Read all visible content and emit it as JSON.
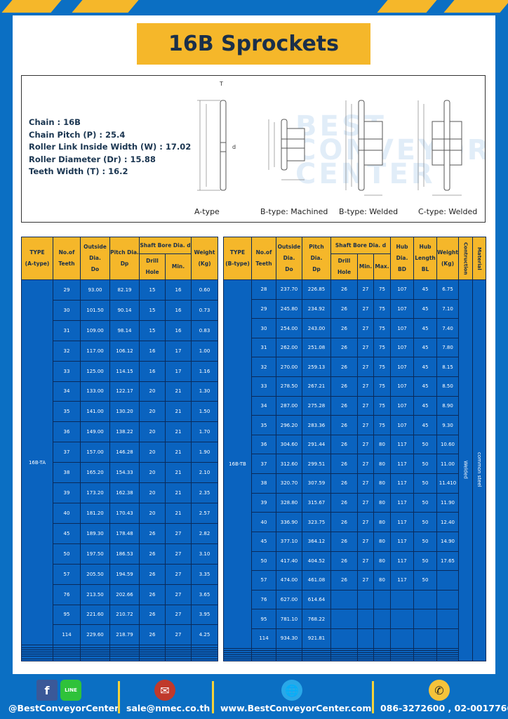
{
  "title": "16B Sprockets",
  "specs": [
    "Chain  :  16B",
    "Chain Pitch (P)  :  25.4",
    "Roller Link Inside Width (W)  :  17.02",
    "Roller Diameter (Dr)  : 15.88",
    "Teeth Width (T)  :  16.2"
  ],
  "watermark": [
    "BEST",
    "CONVEYOR",
    "CENTER"
  ],
  "diagram_labels": [
    "A-type",
    "B-type: Machined",
    "B-type: Welded",
    "C-type: Welded"
  ],
  "dim_labels": {
    "t": "T",
    "do": "Do",
    "dp": "Dp",
    "d": "d",
    "bd": "BD",
    "bl": "BL"
  },
  "colors": {
    "page_blue": "#0b6fc3",
    "header_yellow": "#f5b72a",
    "cell_blue": "#0a63bf"
  },
  "table_a": {
    "headers": {
      "type": "TYPE",
      "type_sub": "(A-type)",
      "teeth": "No.of",
      "teeth_sub": "Teeth",
      "do": "Outside",
      "do_sub": "Dia.",
      "do_sub2": "Do",
      "dp": "Pitch Dia.",
      "dp_sub": "Dp",
      "bore": "Shaft Bore Dia. d",
      "drill": "Drill Hole",
      "min": "Min.",
      "weight": "Weight",
      "weight_sub": "(Kg)"
    },
    "type_value": "16B-TA",
    "empty_rows": 7,
    "rows": [
      [
        "29",
        "93.00",
        "82.19",
        "15",
        "16",
        "0.60"
      ],
      [
        "30",
        "101.50",
        "90.14",
        "15",
        "16",
        "0.73"
      ],
      [
        "31",
        "109.00",
        "98.14",
        "15",
        "16",
        "0.83"
      ],
      [
        "32",
        "117.00",
        "106.12",
        "16",
        "17",
        "1.00"
      ],
      [
        "33",
        "125.00",
        "114.15",
        "16",
        "17",
        "1.16"
      ],
      [
        "34",
        "133.00",
        "122.17",
        "20",
        "21",
        "1.30"
      ],
      [
        "35",
        "141.00",
        "130.20",
        "20",
        "21",
        "1.50"
      ],
      [
        "36",
        "149.00",
        "138.22",
        "20",
        "21",
        "1.70"
      ],
      [
        "37",
        "157.00",
        "146.28",
        "20",
        "21",
        "1.90"
      ],
      [
        "38",
        "165.20",
        "154.33",
        "20",
        "21",
        "2.10"
      ],
      [
        "39",
        "173.20",
        "162.38",
        "20",
        "21",
        "2.35"
      ],
      [
        "40",
        "181.20",
        "170.43",
        "20",
        "21",
        "2.57"
      ],
      [
        "45",
        "189.30",
        "178.48",
        "26",
        "27",
        "2.82"
      ],
      [
        "50",
        "197.50",
        "186.53",
        "26",
        "27",
        "3.10"
      ],
      [
        "57",
        "205.50",
        "194.59",
        "26",
        "27",
        "3.35"
      ],
      [
        "76",
        "213.50",
        "202.66",
        "26",
        "27",
        "3.65"
      ],
      [
        "95",
        "221.60",
        "210.72",
        "26",
        "27",
        "3.95"
      ],
      [
        "114",
        "229.60",
        "218.79",
        "26",
        "27",
        "4.25"
      ]
    ]
  },
  "table_b": {
    "headers": {
      "type": "TYPE",
      "type_sub": "(B-type)",
      "teeth": "No.of",
      "teeth_sub": "Teeth",
      "do": "Outside",
      "do_sub": "Dia.",
      "do_sub2": "Do",
      "dp": "Pitch Dia.",
      "dp_sub": "Dp",
      "bore": "Shaft Bore Dia. d",
      "drill": "Drill Hole",
      "min": "Min.",
      "max": "Max.",
      "bd": "Hub Dia.",
      "bd_sub": "BD",
      "bl": "Hub",
      "bl_sub": "Length",
      "bl_sub2": "BL",
      "weight": "Weight",
      "weight_sub": "(Kg)",
      "construction": "Contruction",
      "material": "Material"
    },
    "type_value": "16B-TB",
    "construction_value": "Welded",
    "material_value": "common steel",
    "empty_rows": 6,
    "rows": [
      [
        "28",
        "237.70",
        "226.85",
        "26",
        "27",
        "75",
        "107",
        "45",
        "6.75"
      ],
      [
        "29",
        "245.80",
        "234.92",
        "26",
        "27",
        "75",
        "107",
        "45",
        "7.10"
      ],
      [
        "30",
        "254.00",
        "243.00",
        "26",
        "27",
        "75",
        "107",
        "45",
        "7.40"
      ],
      [
        "31",
        "262.00",
        "251.08",
        "26",
        "27",
        "75",
        "107",
        "45",
        "7.80"
      ],
      [
        "32",
        "270.00",
        "259.13",
        "26",
        "27",
        "75",
        "107",
        "45",
        "8.15"
      ],
      [
        "33",
        "278.50",
        "267.21",
        "26",
        "27",
        "75",
        "107",
        "45",
        "8.50"
      ],
      [
        "34",
        "287.00",
        "275.28",
        "26",
        "27",
        "75",
        "107",
        "45",
        "8.90"
      ],
      [
        "35",
        "296.20",
        "283.36",
        "26",
        "27",
        "75",
        "107",
        "45",
        "9.30"
      ],
      [
        "36",
        "304.60",
        "291.44",
        "26",
        "27",
        "80",
        "117",
        "50",
        "10.60"
      ],
      [
        "37",
        "312.60",
        "299.51",
        "26",
        "27",
        "80",
        "117",
        "50",
        "11.00"
      ],
      [
        "38",
        "320.70",
        "307.59",
        "26",
        "27",
        "80",
        "117",
        "50",
        "11.410"
      ],
      [
        "39",
        "328.80",
        "315.67",
        "26",
        "27",
        "80",
        "117",
        "50",
        "11.90"
      ],
      [
        "40",
        "336.90",
        "323.75",
        "26",
        "27",
        "80",
        "117",
        "50",
        "12.40"
      ],
      [
        "45",
        "377.10",
        "364.12",
        "26",
        "27",
        "80",
        "117",
        "50",
        "14.90"
      ],
      [
        "50",
        "417.40",
        "404.52",
        "26",
        "27",
        "80",
        "117",
        "50",
        "17.65"
      ],
      [
        "57",
        "474.00",
        "461.08",
        "26",
        "27",
        "80",
        "117",
        "50",
        ""
      ],
      [
        "76",
        "627.00",
        "614.64",
        "",
        "",
        "",
        "",
        "",
        ""
      ],
      [
        "95",
        "781.10",
        "768.22",
        "",
        "",
        "",
        "",
        "",
        ""
      ],
      [
        "114",
        "934.30",
        "921.81",
        "",
        "",
        "",
        "",
        "",
        ""
      ]
    ]
  },
  "footer": {
    "social": "@BestConveyorCenter",
    "line_label": "LINE",
    "email": "sale@nmec.co.th",
    "website": "www.BestConveyorCenter.com",
    "phone": "086-3272600 , 02-0017766"
  }
}
